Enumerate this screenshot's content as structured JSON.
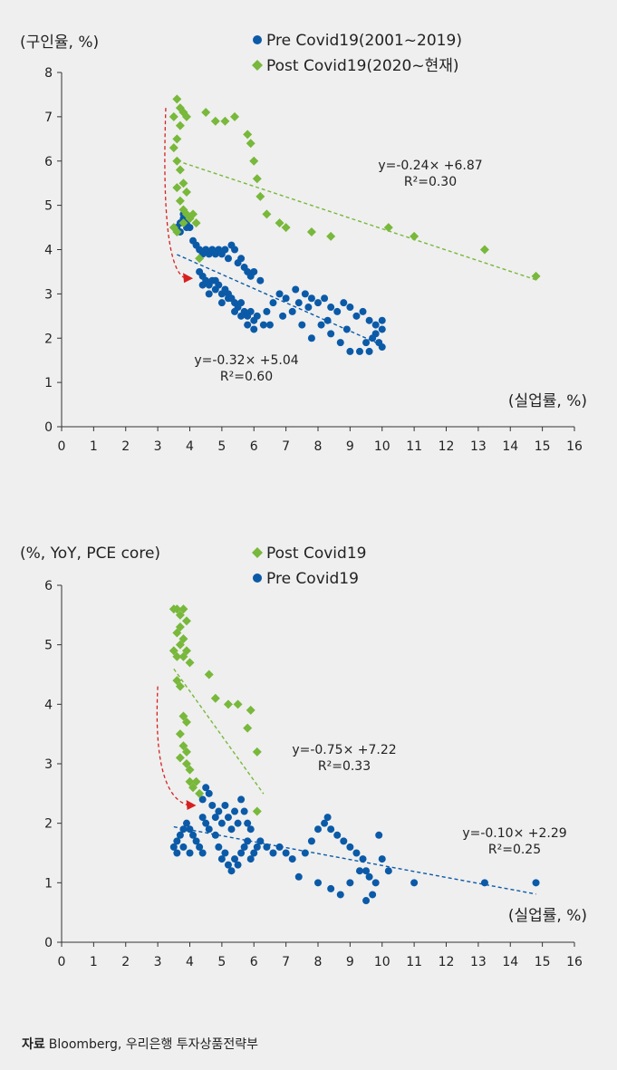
{
  "source": {
    "label": "자료",
    "text": "Bloomberg, 우리은행 투자상품전략부"
  },
  "colors": {
    "pre": "#0b5aa8",
    "post": "#78b83b",
    "arrow": "#d62020",
    "axis": "#333333"
  },
  "chart_data": [
    {
      "type": "scatter",
      "ylabel": "(구인율, %)",
      "xlabel": "(실업률, %)",
      "xlim": [
        0,
        16
      ],
      "ylim": [
        0,
        8
      ],
      "xticks": [
        0,
        1,
        2,
        3,
        4,
        5,
        6,
        7,
        8,
        9,
        10,
        11,
        12,
        13,
        14,
        15,
        16
      ],
      "yticks": [
        0,
        1,
        2,
        3,
        4,
        5,
        6,
        7,
        8
      ],
      "legend": [
        "Pre Covid19(2001~2019)",
        "Post Covid19(2020~현재)"
      ],
      "series": [
        {
          "name": "Pre Covid19(2001~2019)",
          "marker": "circle",
          "points": [
            [
              3.6,
              4.5
            ],
            [
              3.7,
              4.6
            ],
            [
              3.8,
              4.7
            ],
            [
              3.9,
              4.5
            ],
            [
              3.7,
              4.4
            ],
            [
              3.8,
              4.8
            ],
            [
              3.9,
              4.6
            ],
            [
              4.0,
              4.5
            ],
            [
              4.1,
              4.2
            ],
            [
              4.2,
              4.1
            ],
            [
              4.3,
              4.0
            ],
            [
              4.4,
              3.9
            ],
            [
              4.5,
              4.0
            ],
            [
              4.6,
              3.9
            ],
            [
              4.7,
              4.0
            ],
            [
              4.8,
              3.9
            ],
            [
              4.9,
              4.0
            ],
            [
              5.0,
              3.9
            ],
            [
              5.1,
              4.0
            ],
            [
              5.2,
              3.8
            ],
            [
              5.3,
              4.1
            ],
            [
              5.4,
              4.0
            ],
            [
              5.5,
              3.7
            ],
            [
              5.6,
              3.8
            ],
            [
              5.7,
              3.6
            ],
            [
              5.8,
              3.5
            ],
            [
              5.9,
              3.4
            ],
            [
              6.0,
              3.5
            ],
            [
              6.2,
              3.3
            ],
            [
              4.3,
              3.5
            ],
            [
              4.4,
              3.4
            ],
            [
              4.5,
              3.3
            ],
            [
              4.6,
              3.2
            ],
            [
              4.7,
              3.3
            ],
            [
              4.8,
              3.1
            ],
            [
              4.9,
              3.2
            ],
            [
              5.0,
              3.0
            ],
            [
              5.1,
              3.1
            ],
            [
              5.2,
              2.9
            ],
            [
              5.3,
              2.9
            ],
            [
              5.4,
              2.8
            ],
            [
              5.5,
              2.7
            ],
            [
              5.6,
              2.8
            ],
            [
              5.7,
              2.6
            ],
            [
              5.8,
              2.5
            ],
            [
              5.9,
              2.6
            ],
            [
              6.0,
              2.4
            ],
            [
              6.1,
              2.5
            ],
            [
              6.3,
              2.3
            ],
            [
              4.4,
              3.2
            ],
            [
              4.6,
              3.0
            ],
            [
              4.8,
              3.3
            ],
            [
              5.0,
              2.8
            ],
            [
              5.2,
              3.0
            ],
            [
              5.4,
              2.6
            ],
            [
              5.6,
              2.5
            ],
            [
              5.8,
              2.3
            ],
            [
              6.0,
              2.2
            ],
            [
              6.5,
              2.3
            ],
            [
              6.8,
              3.0
            ],
            [
              7.0,
              2.9
            ],
            [
              7.3,
              3.1
            ],
            [
              7.6,
              3.0
            ],
            [
              7.8,
              2.9
            ],
            [
              8.0,
              2.8
            ],
            [
              8.2,
              2.9
            ],
            [
              8.4,
              2.7
            ],
            [
              8.6,
              2.6
            ],
            [
              8.8,
              2.8
            ],
            [
              9.0,
              2.7
            ],
            [
              9.2,
              2.5
            ],
            [
              9.4,
              2.6
            ],
            [
              9.6,
              2.4
            ],
            [
              9.8,
              2.3
            ],
            [
              10.0,
              2.2
            ],
            [
              10.0,
              1.8
            ],
            [
              9.9,
              1.9
            ],
            [
              9.7,
              2.0
            ],
            [
              9.5,
              1.9
            ],
            [
              9.3,
              1.7
            ],
            [
              9.0,
              1.7
            ],
            [
              8.7,
              1.9
            ],
            [
              8.4,
              2.1
            ],
            [
              8.1,
              2.3
            ],
            [
              7.8,
              2.0
            ],
            [
              7.5,
              2.3
            ],
            [
              7.2,
              2.6
            ],
            [
              6.9,
              2.5
            ],
            [
              6.6,
              2.8
            ],
            [
              6.4,
              2.6
            ],
            [
              7.4,
              2.8
            ],
            [
              7.7,
              2.7
            ],
            [
              8.3,
              2.4
            ],
            [
              8.9,
              2.2
            ],
            [
              9.6,
              1.7
            ],
            [
              9.8,
              2.1
            ],
            [
              10.0,
              2.4
            ]
          ]
        },
        {
          "name": "Post Covid19(2020~현재)",
          "marker": "diamond",
          "points": [
            [
              3.5,
              7.0
            ],
            [
              3.6,
              7.4
            ],
            [
              3.7,
              7.2
            ],
            [
              3.8,
              7.1
            ],
            [
              3.9,
              7.0
            ],
            [
              3.7,
              6.8
            ],
            [
              3.6,
              6.5
            ],
            [
              3.5,
              6.3
            ],
            [
              3.6,
              6.0
            ],
            [
              3.7,
              5.8
            ],
            [
              3.8,
              5.5
            ],
            [
              3.9,
              5.3
            ],
            [
              3.6,
              5.4
            ],
            [
              3.7,
              5.1
            ],
            [
              3.8,
              4.9
            ],
            [
              3.9,
              4.8
            ],
            [
              4.0,
              4.7
            ],
            [
              3.5,
              4.5
            ],
            [
              3.6,
              4.4
            ],
            [
              3.8,
              4.6
            ],
            [
              4.1,
              4.8
            ],
            [
              4.2,
              4.6
            ],
            [
              4.5,
              7.1
            ],
            [
              4.8,
              6.9
            ],
            [
              5.1,
              6.9
            ],
            [
              5.4,
              7.0
            ],
            [
              5.8,
              6.6
            ],
            [
              5.9,
              6.4
            ],
            [
              6.0,
              6.0
            ],
            [
              6.1,
              5.6
            ],
            [
              6.2,
              5.2
            ],
            [
              6.4,
              4.8
            ],
            [
              6.8,
              4.6
            ],
            [
              7.0,
              4.5
            ],
            [
              7.8,
              4.4
            ],
            [
              8.4,
              4.3
            ],
            [
              10.2,
              4.5
            ],
            [
              11.0,
              4.3
            ],
            [
              13.2,
              4.0
            ],
            [
              14.8,
              3.4
            ],
            [
              4.3,
              3.8
            ]
          ]
        }
      ],
      "trendlines": [
        {
          "series": "Post Covid19(2020~현재)",
          "equation": "y=-0.24× +6.87",
          "r2": "R²=0.30",
          "x": [
            3.8,
            14.8
          ]
        },
        {
          "series": "Pre Covid19(2001~2019)",
          "equation": "y=-0.32× +5.04",
          "r2": "R²=0.60",
          "x": [
            3.6,
            10.0
          ]
        }
      ],
      "arrow": {
        "from": [
          3.25,
          7.2
        ],
        "to": [
          4.1,
          3.35
        ]
      }
    },
    {
      "type": "scatter",
      "ylabel": "(%, YoY, PCE core)",
      "xlabel": "(실업률, %)",
      "xlim": [
        0,
        16
      ],
      "ylim": [
        0,
        6
      ],
      "xticks": [
        0,
        1,
        2,
        3,
        4,
        5,
        6,
        7,
        8,
        9,
        10,
        11,
        12,
        13,
        14,
        15,
        16
      ],
      "yticks": [
        0,
        1,
        2,
        3,
        4,
        5,
        6
      ],
      "legend": [
        "Post Covid19",
        "Pre Covid19"
      ],
      "series": [
        {
          "name": "Post Covid19",
          "marker": "diamond",
          "points": [
            [
              3.5,
              5.6
            ],
            [
              3.6,
              5.6
            ],
            [
              3.7,
              5.5
            ],
            [
              3.8,
              5.6
            ],
            [
              3.9,
              5.4
            ],
            [
              3.7,
              5.3
            ],
            [
              3.6,
              5.2
            ],
            [
              3.8,
              5.1
            ],
            [
              3.7,
              5.0
            ],
            [
              3.5,
              4.9
            ],
            [
              3.6,
              4.8
            ],
            [
              3.8,
              4.8
            ],
            [
              3.9,
              4.9
            ],
            [
              4.0,
              4.7
            ],
            [
              3.6,
              4.4
            ],
            [
              3.7,
              4.3
            ],
            [
              3.8,
              3.8
            ],
            [
              3.9,
              3.7
            ],
            [
              3.7,
              3.5
            ],
            [
              3.8,
              3.3
            ],
            [
              3.9,
              3.2
            ],
            [
              3.7,
              3.1
            ],
            [
              3.9,
              3.0
            ],
            [
              4.0,
              2.9
            ],
            [
              4.0,
              2.7
            ],
            [
              4.1,
              2.6
            ],
            [
              4.2,
              2.7
            ],
            [
              4.6,
              4.5
            ],
            [
              4.8,
              4.1
            ],
            [
              5.2,
              4.0
            ],
            [
              5.5,
              4.0
            ],
            [
              5.9,
              3.9
            ],
            [
              5.8,
              3.6
            ],
            [
              6.1,
              3.2
            ],
            [
              6.1,
              2.2
            ],
            [
              4.3,
              2.5
            ]
          ]
        },
        {
          "name": "Pre Covid19",
          "marker": "circle",
          "points": [
            [
              3.5,
              1.6
            ],
            [
              3.6,
              1.7
            ],
            [
              3.7,
              1.8
            ],
            [
              3.8,
              1.9
            ],
            [
              3.9,
              2.0
            ],
            [
              4.0,
              1.9
            ],
            [
              4.1,
              1.8
            ],
            [
              4.2,
              1.7
            ],
            [
              4.3,
              1.6
            ],
            [
              4.4,
              1.5
            ],
            [
              3.6,
              1.5
            ],
            [
              3.8,
              1.6
            ],
            [
              4.0,
              1.5
            ],
            [
              4.4,
              2.4
            ],
            [
              4.5,
              2.6
            ],
            [
              4.6,
              2.5
            ],
            [
              4.7,
              2.3
            ],
            [
              4.4,
              2.1
            ],
            [
              4.5,
              2.0
            ],
            [
              4.6,
              1.9
            ],
            [
              4.8,
              2.1
            ],
            [
              4.9,
              2.2
            ],
            [
              5.0,
              2.0
            ],
            [
              5.1,
              2.3
            ],
            [
              5.2,
              2.1
            ],
            [
              5.3,
              1.9
            ],
            [
              5.4,
              2.2
            ],
            [
              5.5,
              2.0
            ],
            [
              5.6,
              2.4
            ],
            [
              5.7,
              2.2
            ],
            [
              5.8,
              2.0
            ],
            [
              5.9,
              1.9
            ],
            [
              4.8,
              1.8
            ],
            [
              4.9,
              1.6
            ],
            [
              5.0,
              1.4
            ],
            [
              5.1,
              1.5
            ],
            [
              5.2,
              1.3
            ],
            [
              5.3,
              1.2
            ],
            [
              5.4,
              1.4
            ],
            [
              5.5,
              1.3
            ],
            [
              5.6,
              1.5
            ],
            [
              5.7,
              1.6
            ],
            [
              5.8,
              1.7
            ],
            [
              5.9,
              1.4
            ],
            [
              6.0,
              1.5
            ],
            [
              6.1,
              1.6
            ],
            [
              6.2,
              1.7
            ],
            [
              6.4,
              1.6
            ],
            [
              6.6,
              1.5
            ],
            [
              6.8,
              1.6
            ],
            [
              7.0,
              1.5
            ],
            [
              7.2,
              1.4
            ],
            [
              7.4,
              1.1
            ],
            [
              7.6,
              1.5
            ],
            [
              7.8,
              1.7
            ],
            [
              8.0,
              1.9
            ],
            [
              8.2,
              2.0
            ],
            [
              8.3,
              2.1
            ],
            [
              8.4,
              1.9
            ],
            [
              8.6,
              1.8
            ],
            [
              8.8,
              1.7
            ],
            [
              9.0,
              1.6
            ],
            [
              9.2,
              1.5
            ],
            [
              9.4,
              1.4
            ],
            [
              9.5,
              1.2
            ],
            [
              9.6,
              1.1
            ],
            [
              9.8,
              1.0
            ],
            [
              9.5,
              0.7
            ],
            [
              9.7,
              0.8
            ],
            [
              8.7,
              0.8
            ],
            [
              8.4,
              0.9
            ],
            [
              8.0,
              1.0
            ],
            [
              9.0,
              1.0
            ],
            [
              9.3,
              1.2
            ],
            [
              9.9,
              1.8
            ],
            [
              10.0,
              1.4
            ],
            [
              10.2,
              1.2
            ],
            [
              11.0,
              1.0
            ],
            [
              13.2,
              1.0
            ],
            [
              14.8,
              1.0
            ]
          ]
        }
      ],
      "trendlines": [
        {
          "series": "Post Covid19",
          "equation": "y=-0.75× +7.22",
          "r2": "R²=0.33",
          "x": [
            3.5,
            6.3
          ]
        },
        {
          "series": "Pre Covid19",
          "equation": "y=-0.10× +2.29",
          "r2": "R²=0.25",
          "x": [
            3.5,
            14.8
          ]
        }
      ],
      "arrow": {
        "from": [
          3.0,
          4.3
        ],
        "to": [
          4.2,
          2.3
        ]
      }
    }
  ]
}
